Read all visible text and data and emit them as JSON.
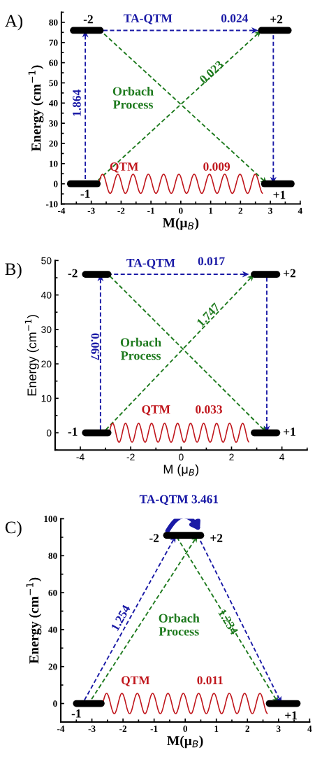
{
  "chart_data": [
    {
      "type": "line",
      "title": "A)",
      "xlabel": "M(μ$_{B}$)",
      "ylabel": "Energy (cm$^{−1}$)",
      "xlim": [
        -4,
        4
      ],
      "xticks": [
        -4,
        -3,
        -2,
        -1,
        0,
        1,
        2,
        3,
        4
      ],
      "ylim": [
        -10,
        85
      ],
      "yticks": [
        -10,
        0,
        10,
        20,
        30,
        40,
        50,
        60,
        70,
        80
      ],
      "grid": false,
      "series": [
        {
          "color": "#000000",
          "line_style": "solid",
          "x": [
            -3.7,
            -2.8
          ],
          "values": [
            0,
            0
          ]
        },
        {
          "color": "#000000",
          "line_style": "solid",
          "x": [
            2.8,
            3.7
          ],
          "values": [
            0,
            0
          ]
        },
        {
          "color": "#000000",
          "line_style": "solid",
          "x": [
            -3.6,
            -2.7
          ],
          "values": [
            76,
            76
          ]
        },
        {
          "color": "#000000",
          "line_style": "solid",
          "x": [
            2.7,
            3.6
          ],
          "values": [
            76,
            76
          ]
        }
      ],
      "annotations": [
        "-2",
        "+2",
        "-1",
        "+1",
        "TA-QTM",
        "0.024",
        "1.864",
        "0.023",
        "Orbach\nProcess",
        "QTM",
        "0.009"
      ]
    },
    {
      "type": "line",
      "title": "B)",
      "xlabel": "M (μ$_{B}$)",
      "ylabel": "Energy (cm$^{−1}$)",
      "xlim": [
        -5,
        5
      ],
      "xticks": [
        -4,
        -2,
        0,
        2,
        4
      ],
      "ylim": [
        -5,
        50
      ],
      "yticks": [
        0,
        10,
        20,
        30,
        40,
        50
      ],
      "grid": false,
      "series": [
        {
          "color": "#000000",
          "line_style": "solid",
          "x": [
            -3.8,
            -2.9
          ],
          "values": [
            0,
            0
          ]
        },
        {
          "color": "#000000",
          "line_style": "solid",
          "x": [
            2.9,
            3.8
          ],
          "values": [
            0,
            0
          ]
        },
        {
          "color": "#000000",
          "line_style": "solid",
          "x": [
            -3.8,
            -2.9
          ],
          "values": [
            46,
            46
          ]
        },
        {
          "color": "#000000",
          "line_style": "solid",
          "x": [
            2.9,
            3.8
          ],
          "values": [
            46,
            46
          ]
        }
      ],
      "annotations": [
        "-2",
        "+2",
        "-1",
        "+1",
        "TA-QTM",
        "0.017",
        "0.067",
        "1.747",
        "Orbach\nProcess",
        "QTM",
        "0.033"
      ]
    },
    {
      "type": "line",
      "title": "C)",
      "xlabel": "M(μ$_{B}$)",
      "ylabel": "Energy (cm$^{−1}$)",
      "xlim": [
        -4,
        4
      ],
      "xticks": [
        -4,
        -3,
        -2,
        -1,
        0,
        1,
        2,
        3,
        4
      ],
      "ylim": [
        -10,
        100
      ],
      "yticks": [
        0,
        20,
        40,
        60,
        80,
        100
      ],
      "grid": false,
      "series": [
        {
          "color": "#000000",
          "line_style": "solid",
          "x": [
            -3.5,
            -2.7
          ],
          "values": [
            0,
            0
          ]
        },
        {
          "color": "#000000",
          "line_style": "solid",
          "x": [
            2.7,
            3.6
          ],
          "values": [
            0,
            0
          ]
        },
        {
          "color": "#000000",
          "line_style": "solid",
          "x": [
            -0.6,
            0.5
          ],
          "values": [
            91,
            91
          ]
        }
      ],
      "annotations": [
        "-2",
        "+2",
        "-1",
        "+1",
        "TA-QTM 3.461",
        "1.254",
        "1.234",
        "Orbach\nProcess",
        "QTM",
        "0.011"
      ]
    }
  ]
}
